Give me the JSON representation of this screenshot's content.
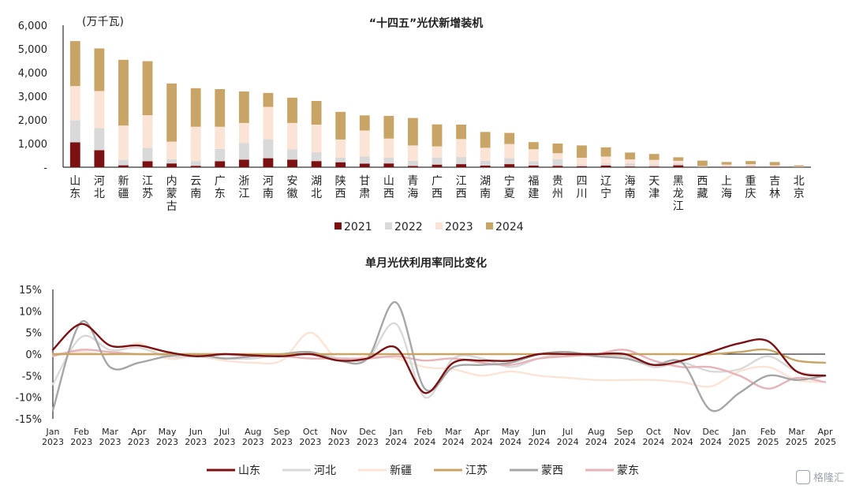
{
  "chart_data": [
    {
      "type": "bar",
      "stacked": true,
      "title": "“十四五”光伏新增装机",
      "ylabel": "(万千瓦)",
      "ylim": [
        0,
        6000
      ],
      "yticks": [
        "-",
        "1,000",
        "2,000",
        "3,000",
        "4,000",
        "5,000",
        "6,000"
      ],
      "legend_position": "bottom",
      "categories": [
        "山东",
        "河北",
        "新疆",
        "江苏",
        "内蒙古",
        "云南",
        "广东",
        "浙江",
        "河南",
        "安徽",
        "湖北",
        "陕西",
        "甘肃",
        "山西",
        "青海",
        "广西",
        "江西",
        "湖南",
        "宁夏",
        "福建",
        "贵州",
        "四川",
        "辽宁",
        "海南",
        "天津",
        "黑龙江",
        "西藏",
        "上海",
        "重庆",
        "吉林",
        "北京"
      ],
      "series": [
        {
          "name": "2021",
          "color": "#7b1113",
          "values": [
            1050,
            720,
            80,
            250,
            160,
            60,
            250,
            320,
            380,
            320,
            260,
            210,
            150,
            160,
            50,
            110,
            130,
            70,
            130,
            70,
            60,
            40,
            70,
            30,
            30,
            80,
            10,
            20,
            20,
            20,
            10
          ]
        },
        {
          "name": "2022",
          "color": "#d9d9d9",
          "values": [
            930,
            940,
            230,
            570,
            170,
            200,
            520,
            700,
            800,
            430,
            370,
            200,
            300,
            250,
            220,
            300,
            300,
            200,
            250,
            190,
            280,
            60,
            80,
            120,
            80,
            70,
            20,
            40,
            60,
            20,
            10
          ]
        },
        {
          "name": "2023",
          "color": "#fbe3d6",
          "values": [
            1450,
            1560,
            1450,
            1380,
            750,
            1450,
            940,
            850,
            1370,
            1120,
            1170,
            760,
            1100,
            800,
            650,
            470,
            760,
            550,
            600,
            500,
            250,
            300,
            300,
            180,
            200,
            120,
            20,
            50,
            50,
            40,
            20
          ]
        },
        {
          "name": "2024",
          "color": "#c8a566",
          "values": [
            1900,
            1800,
            2780,
            2280,
            2460,
            1630,
            1590,
            1330,
            590,
            1070,
            1000,
            1170,
            640,
            960,
            1160,
            930,
            610,
            670,
            470,
            300,
            410,
            520,
            390,
            290,
            250,
            150,
            230,
            110,
            130,
            140,
            40
          ]
        }
      ]
    },
    {
      "type": "line",
      "title": "单月光伏利用率同比变化",
      "ylim": [
        -15,
        15
      ],
      "yticks": [
        "-15%",
        "-10%",
        "-5%",
        "0%",
        "5%",
        "10%",
        "15%"
      ],
      "legend_position": "bottom",
      "x": [
        [
          "Jan",
          "2023"
        ],
        [
          "Feb",
          "2023"
        ],
        [
          "Mar",
          "2023"
        ],
        [
          "Apr",
          "2023"
        ],
        [
          "May",
          "2023"
        ],
        [
          "Jun",
          "2023"
        ],
        [
          "Jul",
          "2023"
        ],
        [
          "Aug",
          "2023"
        ],
        [
          "Sep",
          "2023"
        ],
        [
          "Oct",
          "2023"
        ],
        [
          "Nov",
          "2023"
        ],
        [
          "Dec",
          "2023"
        ],
        [
          "Jan",
          "2024"
        ],
        [
          "Feb",
          "2024"
        ],
        [
          "Mar",
          "2024"
        ],
        [
          "Apr",
          "2024"
        ],
        [
          "May",
          "2024"
        ],
        [
          "Jun",
          "2024"
        ],
        [
          "Jul",
          "2024"
        ],
        [
          "Aug",
          "2024"
        ],
        [
          "Sep",
          "2024"
        ],
        [
          "Oct",
          "2024"
        ],
        [
          "Nov",
          "2024"
        ],
        [
          "Dec",
          "2024"
        ],
        [
          "Jan",
          "2025"
        ],
        [
          "Feb",
          "2025"
        ],
        [
          "Mar",
          "2025"
        ],
        [
          "Apr",
          "2025"
        ]
      ],
      "series": [
        {
          "name": "山东",
          "color": "#7b1113",
          "values": [
            1,
            7,
            2,
            2,
            0.5,
            -0.5,
            0,
            -0.3,
            -0.5,
            0,
            -1.5,
            -1,
            1.5,
            -9,
            -2,
            -1.5,
            -1.5,
            0,
            0,
            0,
            0,
            -2.5,
            -1.5,
            0.5,
            2.5,
            3,
            -4,
            -5
          ]
        },
        {
          "name": "河北",
          "color": "#d9d9d9",
          "values": [
            -7,
            4,
            1,
            1.5,
            -0.5,
            -0.5,
            -1,
            -1,
            0,
            0.5,
            -1,
            -1,
            7,
            -10,
            -1,
            -1,
            -3,
            -1,
            0,
            -0.5,
            -0.5,
            -3,
            -2,
            -4,
            -3.5,
            -0.5,
            -4,
            -5
          ]
        },
        {
          "name": "新疆",
          "color": "#fbe3d6",
          "values": [
            0,
            0.5,
            0,
            2.5,
            -1,
            -0.5,
            -1.5,
            -2,
            -1.5,
            5,
            -1.5,
            -0.5,
            -1,
            -3,
            -3.5,
            -5,
            -4,
            -5,
            -5.5,
            -6,
            -6,
            -6,
            -6.5,
            -7.5,
            -4,
            -3,
            -6,
            -6.5
          ]
        },
        {
          "name": "江苏",
          "color": "#c8a566",
          "values": [
            0,
            0,
            0,
            0,
            0,
            0,
            0,
            0,
            0,
            0,
            0,
            0,
            0,
            0,
            0,
            0,
            0,
            0,
            0,
            0,
            0,
            0,
            0,
            0,
            0.5,
            1,
            -1.5,
            -2
          ]
        },
        {
          "name": "蒙西",
          "color": "#a6a6a6",
          "values": [
            -13,
            7.5,
            -3,
            -2,
            -0.5,
            0,
            -1,
            -0.5,
            0,
            0.5,
            -1.5,
            -1,
            12,
            -8,
            -3,
            -2.5,
            -2,
            0,
            0.5,
            -0.5,
            -1,
            -2.5,
            -2,
            -13,
            -9,
            -5,
            -6,
            -5
          ]
        },
        {
          "name": "蒙东",
          "color": "#e6b3b8",
          "values": [
            -0.5,
            1,
            0.5,
            0,
            0,
            0,
            0,
            -0.5,
            -0.5,
            -1,
            -1,
            -1,
            -0.5,
            -1.5,
            -1,
            -2,
            -2.5,
            -1,
            -0.5,
            0,
            1,
            -1.5,
            -3,
            -3,
            -5,
            -8,
            -5.5,
            -6.5
          ]
        }
      ]
    }
  ],
  "watermark": {
    "text": "格隆汇"
  }
}
